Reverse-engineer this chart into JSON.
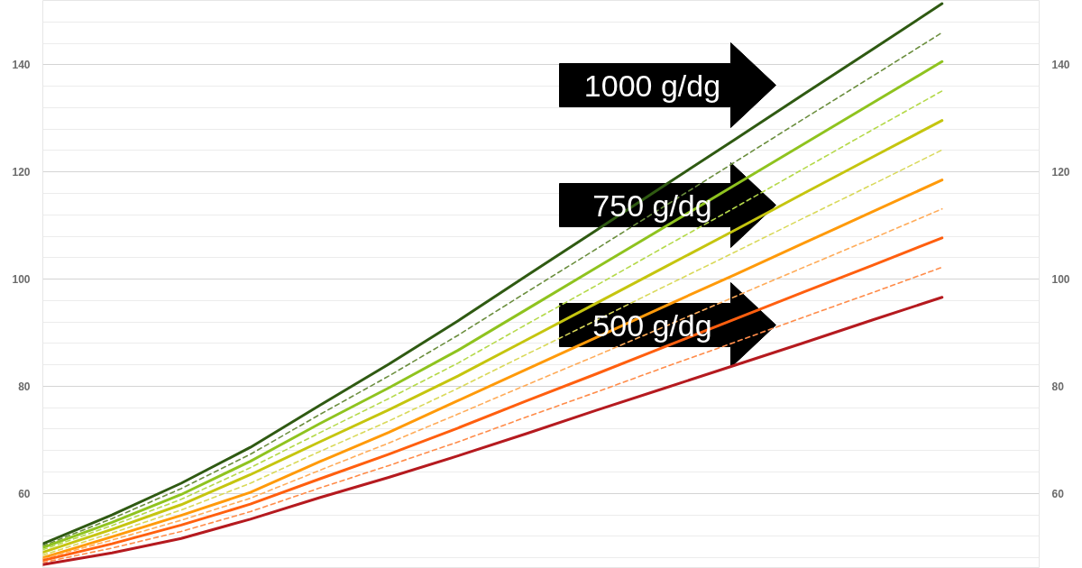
{
  "chart_data": {
    "type": "line",
    "categories": [
      null,
      null,
      null,
      null,
      null,
      null,
      null,
      null,
      null,
      null,
      null,
      null,
      null,
      null
    ],
    "series": [
      {
        "color": "#2f5a12",
        "line_style": "solid",
        "values": [
          50.6,
          56.0,
          61.9,
          68.6,
          76.4,
          84.1,
          92.2,
          100.7,
          109.1,
          117.6,
          126.0,
          134.5,
          142.9,
          151.4
        ]
      },
      {
        "color": "#6b8e3e",
        "line_style": "dashed",
        "values": [
          50.2,
          55.3,
          60.9,
          67.3,
          74.7,
          81.9,
          89.5,
          97.6,
          105.6,
          113.7,
          121.8,
          129.9,
          137.9,
          146.0
        ]
      },
      {
        "color": "#8fc31f",
        "line_style": "solid",
        "values": [
          49.9,
          54.6,
          59.8,
          66.0,
          73.0,
          79.7,
          86.7,
          94.4,
          102.1,
          109.8,
          117.5,
          125.2,
          132.9,
          140.6
        ]
      },
      {
        "color": "#b5d94a",
        "line_style": "dashed",
        "values": [
          49.5,
          54.0,
          58.9,
          64.8,
          71.3,
          77.7,
          84.3,
          91.6,
          98.8,
          106.1,
          113.3,
          120.6,
          127.9,
          135.1
        ]
      },
      {
        "color": "#c5c50f",
        "line_style": "solid",
        "values": [
          49.0,
          53.3,
          57.9,
          63.5,
          69.6,
          75.6,
          81.9,
          88.7,
          95.5,
          102.3,
          109.1,
          116.0,
          122.8,
          129.6
        ]
      },
      {
        "color": "#d9d95a",
        "line_style": "dashed",
        "values": [
          48.5,
          52.6,
          56.9,
          61.9,
          67.8,
          73.5,
          79.6,
          86.0,
          92.3,
          98.7,
          105.0,
          111.4,
          117.7,
          124.1
        ]
      },
      {
        "color": "#ff9a0a",
        "line_style": "solid",
        "values": [
          48.0,
          51.9,
          55.9,
          60.2,
          65.9,
          71.4,
          77.3,
          83.2,
          89.1,
          95.0,
          100.8,
          106.7,
          112.6,
          118.5
        ]
      },
      {
        "color": "#ffac5a",
        "line_style": "dashed",
        "values": [
          47.8,
          51.3,
          55.0,
          59.1,
          64.3,
          69.4,
          74.8,
          80.3,
          85.7,
          91.2,
          96.7,
          102.2,
          107.6,
          113.1
        ]
      },
      {
        "color": "#ff5f0f",
        "line_style": "solid",
        "values": [
          47.5,
          50.6,
          54.1,
          58.0,
          62.7,
          67.3,
          72.2,
          77.3,
          82.3,
          87.4,
          92.5,
          97.6,
          102.6,
          107.7
        ]
      },
      {
        "color": "#ff8c4a",
        "line_style": "dashed",
        "values": [
          47.1,
          49.8,
          52.9,
          56.6,
          61.0,
          65.2,
          69.6,
          74.3,
          78.9,
          83.6,
          88.2,
          92.9,
          97.5,
          102.2
        ]
      },
      {
        "color": "#b51a1f",
        "line_style": "solid",
        "values": [
          46.7,
          48.9,
          51.6,
          55.2,
          59.2,
          63.0,
          67.0,
          71.2,
          75.5,
          79.7,
          83.9,
          88.1,
          92.4,
          96.6
        ]
      }
    ],
    "ylim": [
      46,
      152
    ],
    "yticks": [
      {
        "value": 48,
        "label": null
      },
      {
        "value": 52,
        "label": null
      },
      {
        "value": 56,
        "label": null
      },
      60,
      {
        "value": 64,
        "label": null
      },
      {
        "value": 68,
        "label": null
      },
      {
        "value": 72,
        "label": null
      },
      {
        "value": 76,
        "label": null
      },
      80,
      {
        "value": 84,
        "label": null
      },
      {
        "value": 88,
        "label": null
      },
      {
        "value": 92,
        "label": null
      },
      {
        "value": 96,
        "label": null
      },
      100,
      {
        "value": 104,
        "label": null
      },
      {
        "value": 108,
        "label": null
      },
      {
        "value": 112,
        "label": null
      },
      {
        "value": 116,
        "label": null
      },
      120,
      {
        "value": 124,
        "label": null
      },
      {
        "value": 128,
        "label": null
      },
      {
        "value": 132,
        "label": null
      },
      {
        "value": 136,
        "label": null
      },
      140,
      {
        "value": 144,
        "label": null
      },
      {
        "value": 148,
        "label": null
      }
    ],
    "y2lim": [
      46,
      152
    ],
    "y2ticks": [
      60,
      80,
      100,
      120,
      140
    ],
    "tick_labels": "y",
    "grid": "y",
    "marker": "none",
    "annotations": [
      "1000 g/dg",
      "750 g/dg",
      "500 g/dg"
    ]
  }
}
